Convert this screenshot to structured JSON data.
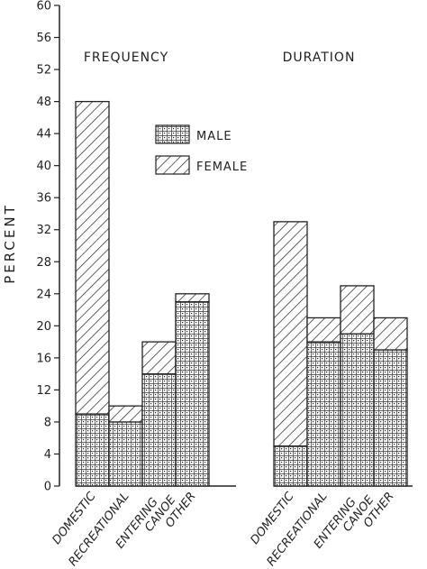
{
  "chart_data": {
    "type": "bar",
    "stacked": true,
    "ylabel": "PERCENT",
    "ylim": [
      0,
      60
    ],
    "yticks": [
      0,
      4,
      8,
      12,
      16,
      20,
      24,
      28,
      32,
      36,
      40,
      44,
      48,
      52,
      56,
      60
    ],
    "grid": false,
    "legend": {
      "placement": "top-center",
      "entries": [
        {
          "name": "MALE",
          "pattern": "dotted-grid"
        },
        {
          "name": "FEMALE",
          "pattern": "diagonal-hatch"
        }
      ]
    },
    "panels": [
      {
        "title": "FREQUENCY",
        "categories": [
          "DOMESTIC",
          "RECREATIONAL",
          "ENTERING CANOE",
          "OTHER"
        ],
        "series": [
          {
            "name": "MALE",
            "values": [
              9,
              8,
              14,
              23
            ]
          },
          {
            "name": "FEMALE",
            "values": [
              39,
              2,
              4,
              1
            ]
          }
        ]
      },
      {
        "title": "DURATION",
        "categories": [
          "DOMESTIC",
          "RECREATIONAL",
          "ENTERING CANOE",
          "OTHER"
        ],
        "series": [
          {
            "name": "MALE",
            "values": [
              5,
              18,
              19,
              17
            ]
          },
          {
            "name": "FEMALE",
            "values": [
              28,
              3,
              6,
              4
            ]
          }
        ]
      }
    ]
  },
  "colors": {
    "ink": "#222222",
    "background": "#ffffff"
  }
}
